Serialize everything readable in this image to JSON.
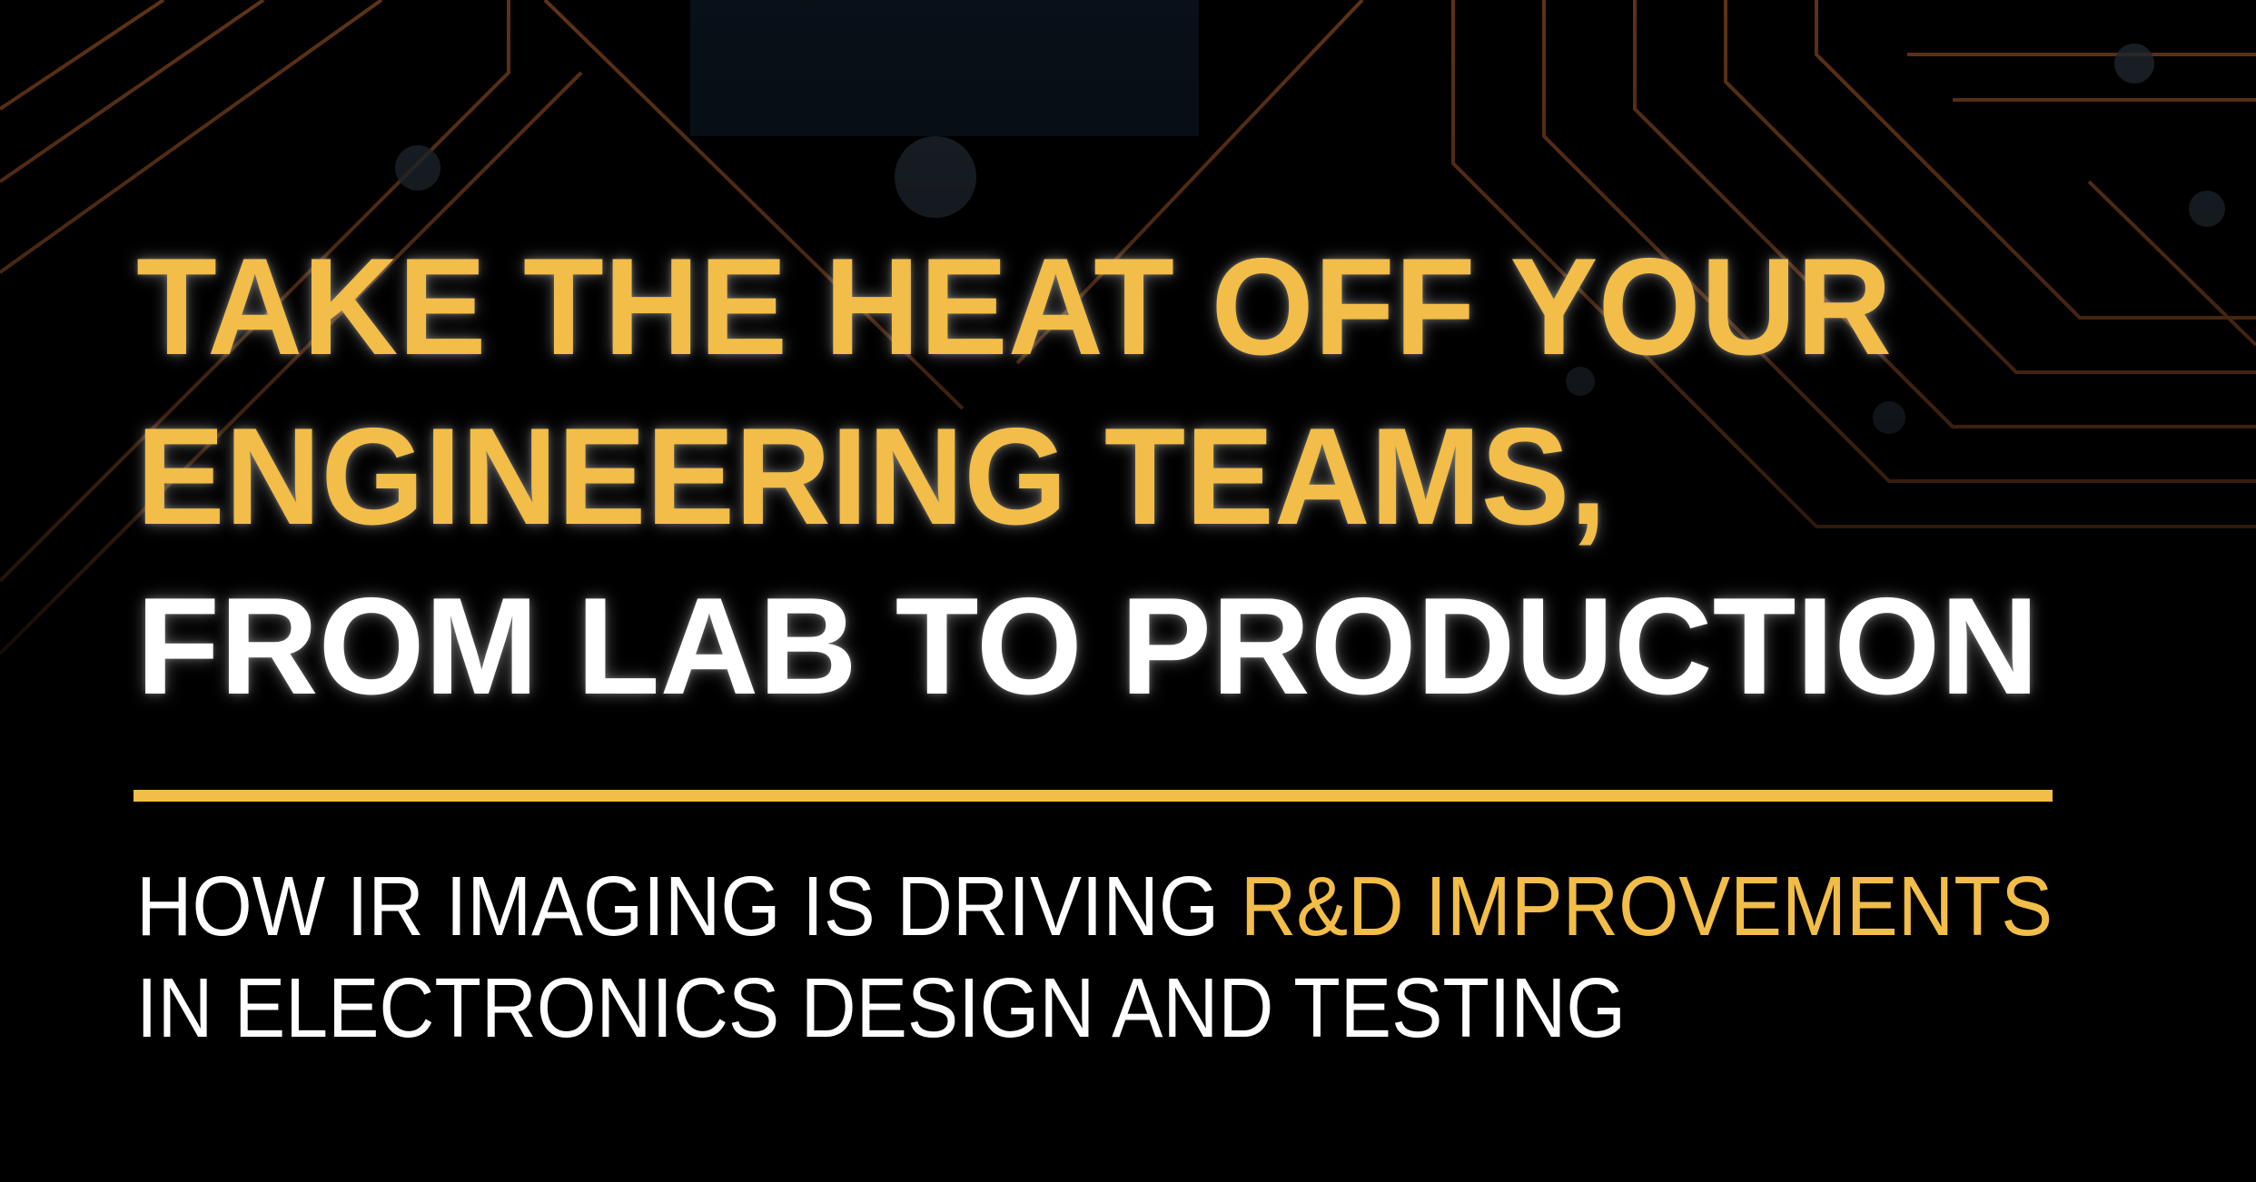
{
  "colors": {
    "accent": "#f2bd48",
    "headline_white": "#ffffff",
    "background": "#000000",
    "trace": "#b3602a"
  },
  "headline": {
    "line1": "TAKE THE HEAT OFF YOUR",
    "line2": "ENGINEERING TEAMS,",
    "line3": "FROM LAB TO PRODUCTION"
  },
  "subheadline": {
    "line1_prefix": "HOW IR IMAGING IS DRIVING ",
    "line1_highlight": "R&D IMPROVEMENTS",
    "line2": "IN ELECTRONICS DESIGN AND TESTING"
  }
}
